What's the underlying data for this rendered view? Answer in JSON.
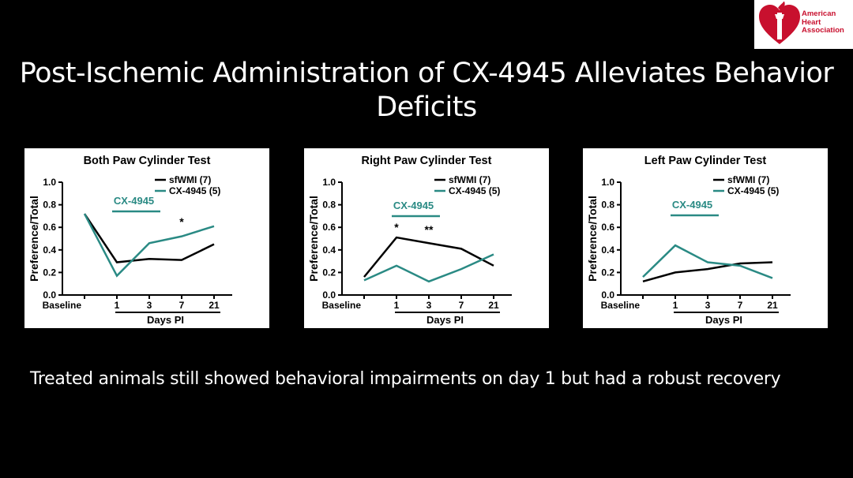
{
  "slide": {
    "title_line1": "Post-Ischemic Administration of CX-4945 Alleviates Behavior",
    "title_line2": "Deficits",
    "caption": "Treated animals still showed behavioral impairments on day 1 but had a robust recovery",
    "logo": {
      "line1": "American",
      "line2": "Heart",
      "line3": "Association"
    }
  },
  "colors": {
    "background": "#000000",
    "sfwmi": "#000000",
    "cx4945": "#2a8a84",
    "logo_red": "#c8102e"
  },
  "chart_data": [
    {
      "type": "line",
      "title": "Both Paw Cylinder Test",
      "ylabel": "Preference/Total",
      "xlabel": "Days PI",
      "categories": [
        "Baseline",
        "1",
        "3",
        "7",
        "21"
      ],
      "ylim": [
        0,
        1.0
      ],
      "yticks": [
        "0.0",
        "0.2",
        "0.4",
        "0.6",
        "0.8",
        "1.0"
      ],
      "series": [
        {
          "name": "sfWMI (7)",
          "values": [
            0.72,
            0.29,
            0.32,
            0.31,
            0.45
          ]
        },
        {
          "name": "CX-4945 (5)",
          "values": [
            0.72,
            0.17,
            0.46,
            0.52,
            0.61
          ]
        }
      ],
      "treatment_label": "CX-4945",
      "legend": "top-right",
      "sig": [
        {
          "cat": 3,
          "text": "*"
        }
      ]
    },
    {
      "type": "line",
      "title": "Right Paw Cylinder Test",
      "ylabel": "Preference/Total",
      "xlabel": "Days PI",
      "categories": [
        "Baseline",
        "1",
        "3",
        "7",
        "21"
      ],
      "ylim": [
        0,
        1.0
      ],
      "yticks": [
        "0.0",
        "0.2",
        "0.4",
        "0.6",
        "0.8",
        "1.0"
      ],
      "series": [
        {
          "name": "sfWMI (7)",
          "values": [
            0.16,
            0.51,
            0.46,
            0.41,
            0.26
          ]
        },
        {
          "name": "CX-4945 (5)",
          "values": [
            0.13,
            0.26,
            0.12,
            0.23,
            0.36
          ]
        }
      ],
      "treatment_label": "CX-4945",
      "legend": "top-right",
      "sig": [
        {
          "cat": 1,
          "text": "*"
        },
        {
          "cat": 2,
          "text": "**"
        }
      ]
    },
    {
      "type": "line",
      "title": "Left Paw Cylinder Test",
      "ylabel": "Preference/Total",
      "xlabel": "Days PI",
      "categories": [
        "Baseline",
        "1",
        "3",
        "7",
        "21"
      ],
      "ylim": [
        0,
        1.0
      ],
      "yticks": [
        "0.0",
        "0.2",
        "0.4",
        "0.6",
        "0.8",
        "1.0"
      ],
      "series": [
        {
          "name": "sfWMI (7)",
          "values": [
            0.12,
            0.2,
            0.23,
            0.28,
            0.29
          ]
        },
        {
          "name": "CX-4945 (5)",
          "values": [
            0.16,
            0.44,
            0.29,
            0.26,
            0.15
          ]
        }
      ],
      "treatment_label": "CX-4945",
      "legend": "top-right",
      "sig": []
    }
  ]
}
